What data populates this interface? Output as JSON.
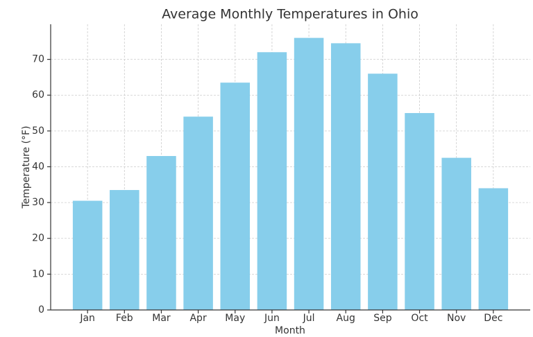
{
  "chart_data": {
    "type": "bar",
    "title": "Average Monthly Temperatures in Ohio",
    "x_label": "Month",
    "y_label": "Temperature (°F)",
    "categories": [
      "Jan",
      "Feb",
      "Mar",
      "Apr",
      "May",
      "Jun",
      "Jul",
      "Aug",
      "Sep",
      "Oct",
      "Nov",
      "Dec"
    ],
    "values": [
      30.5,
      33.5,
      43,
      54,
      63.5,
      72,
      76,
      74.5,
      66,
      55,
      42.5,
      34
    ],
    "color": "#87ceeb",
    "ylim": [
      0,
      79.8
    ],
    "yticks": [
      0,
      10,
      20,
      30,
      40,
      50,
      60,
      70
    ],
    "grid": true
  }
}
